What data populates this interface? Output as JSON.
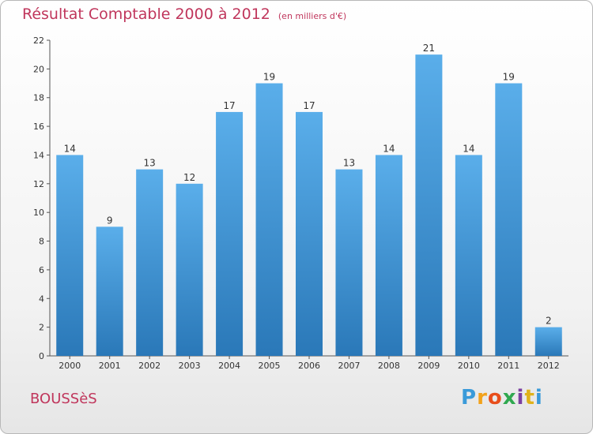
{
  "chart_data": {
    "type": "bar",
    "title": "Résultat Comptable 2000 à 2012",
    "subtitle": "(en milliers d'€)",
    "categories": [
      "2000",
      "2001",
      "2002",
      "2003",
      "2004",
      "2005",
      "2006",
      "2007",
      "2008",
      "2009",
      "2010",
      "2011",
      "2012"
    ],
    "values": [
      14,
      9,
      13,
      12,
      17,
      19,
      17,
      13,
      14,
      21,
      14,
      19,
      2
    ],
    "ylim": [
      0,
      22
    ],
    "yticks": [
      0,
      2,
      4,
      6,
      8,
      10,
      12,
      14,
      16,
      18,
      20,
      22
    ],
    "xlabel": "",
    "ylabel": "",
    "grid": false,
    "legend": "none"
  },
  "footer": {
    "place": "BOUSSèS",
    "logo_letters": [
      "P",
      "r",
      "o",
      "x",
      "i",
      "t",
      "i"
    ],
    "logo_colors": [
      "#3a9ad9",
      "#f2a21b",
      "#e84e1b",
      "#2fa84f",
      "#7b3fa0",
      "#e0b21a",
      "#3a9ad9"
    ]
  },
  "colors": {
    "bar_top": "#5aaeea",
    "bar_bottom": "#2a78b8",
    "accent": "#c0365c"
  }
}
